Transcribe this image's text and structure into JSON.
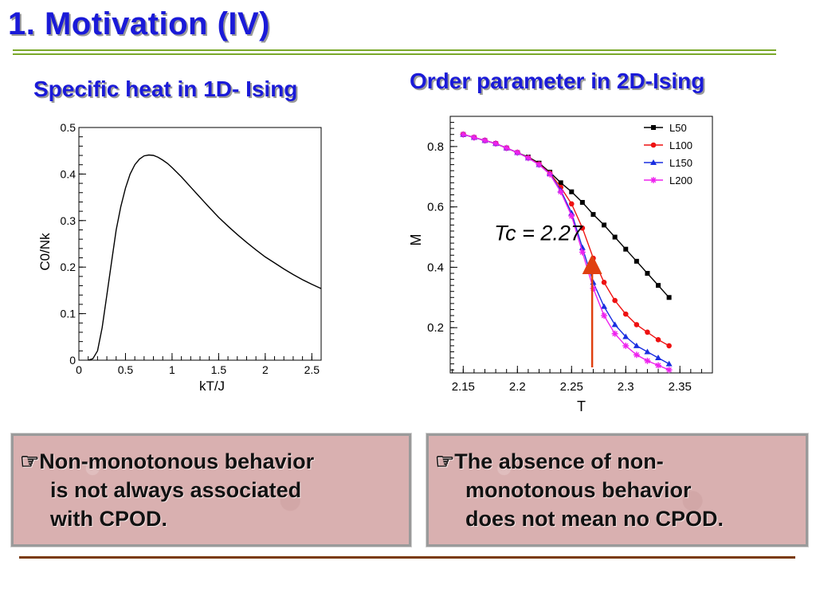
{
  "slide": {
    "title": "1. Motivation (IV)",
    "left_subtitle": "Specific heat in 1D- Ising",
    "right_subtitle": "Order parameter in 2D-Ising"
  },
  "notes": {
    "left": [
      "☞Non-monotonous behavior",
      "is not always associated",
      "with CPOD."
    ],
    "right": [
      "☞The absence of non-",
      "monotonous behavior",
      "does not mean no CPOD."
    ]
  },
  "chart_data": [
    {
      "type": "line",
      "xlabel": "kT/J",
      "ylabel": "C0/Nk",
      "xlim": [
        0,
        2.6
      ],
      "ylim": [
        0,
        0.5
      ],
      "xticks": [
        "0",
        "0.5",
        "1",
        "1.5",
        "2",
        "2.5"
      ],
      "yticks": [
        "0",
        "0.1",
        "0.2",
        "0.3",
        "0.4",
        "0.5"
      ],
      "grid": false,
      "series": [
        {
          "x": [
            0.1,
            0.15,
            0.2,
            0.25,
            0.3,
            0.35,
            0.4,
            0.45,
            0.5,
            0.55,
            0.6,
            0.65,
            0.7,
            0.75,
            0.8,
            0.85,
            0.9,
            0.95,
            1.0,
            1.1,
            1.2,
            1.3,
            1.4,
            1.5,
            1.6,
            1.7,
            1.8,
            1.9,
            2.0,
            2.1,
            2.2,
            2.3,
            2.4,
            2.5,
            2.6
          ],
          "y": [
            0.0,
            0.003,
            0.02,
            0.07,
            0.14,
            0.21,
            0.28,
            0.33,
            0.37,
            0.4,
            0.42,
            0.432,
            0.439,
            0.441,
            0.44,
            0.436,
            0.43,
            0.423,
            0.414,
            0.394,
            0.372,
            0.35,
            0.328,
            0.307,
            0.288,
            0.27,
            0.253,
            0.237,
            0.222,
            0.209,
            0.196,
            0.184,
            0.173,
            0.163,
            0.154
          ]
        }
      ]
    },
    {
      "type": "line",
      "xlabel": "T",
      "ylabel": "M",
      "xlim": [
        2.138,
        2.38
      ],
      "ylim": [
        0.05,
        0.9
      ],
      "xticks": [
        "2.15",
        "2.2",
        "2.25",
        "2.3",
        "2.35"
      ],
      "yticks": [
        "0.2",
        "0.4",
        "0.6",
        "0.8"
      ],
      "legend_position": "top-right",
      "annotation": "Tc = 2.27",
      "annotation_x": 2.269,
      "grid": false,
      "x": [
        2.15,
        2.16,
        2.17,
        2.18,
        2.19,
        2.2,
        2.21,
        2.22,
        2.23,
        2.24,
        2.25,
        2.26,
        2.27,
        2.28,
        2.29,
        2.3,
        2.31,
        2.32,
        2.33,
        2.34
      ],
      "series": [
        {
          "name": "L50",
          "color": "#000000",
          "marker": "square",
          "values": [
            0.84,
            0.83,
            0.82,
            0.81,
            0.795,
            0.78,
            0.765,
            0.745,
            0.715,
            0.68,
            0.65,
            0.615,
            0.575,
            0.54,
            0.5,
            0.46,
            0.42,
            0.38,
            0.34,
            0.3
          ]
        },
        {
          "name": "L100",
          "color": "#ee1111",
          "marker": "circle",
          "values": [
            0.84,
            0.83,
            0.82,
            0.81,
            0.795,
            0.78,
            0.763,
            0.742,
            0.712,
            0.665,
            0.61,
            0.53,
            0.43,
            0.35,
            0.29,
            0.245,
            0.21,
            0.185,
            0.16,
            0.14
          ]
        },
        {
          "name": "L150",
          "color": "#1a2ee0",
          "marker": "triangle",
          "values": [
            0.84,
            0.83,
            0.82,
            0.81,
            0.795,
            0.78,
            0.762,
            0.74,
            0.71,
            0.655,
            0.58,
            0.465,
            0.35,
            0.27,
            0.21,
            0.17,
            0.14,
            0.12,
            0.1,
            0.08
          ]
        },
        {
          "name": "L200",
          "color": "#ee22ee",
          "marker": "star",
          "values": [
            0.84,
            0.83,
            0.82,
            0.81,
            0.795,
            0.78,
            0.762,
            0.74,
            0.708,
            0.65,
            0.57,
            0.45,
            0.33,
            0.24,
            0.18,
            0.14,
            0.11,
            0.09,
            0.075,
            0.06
          ]
        }
      ]
    }
  ]
}
